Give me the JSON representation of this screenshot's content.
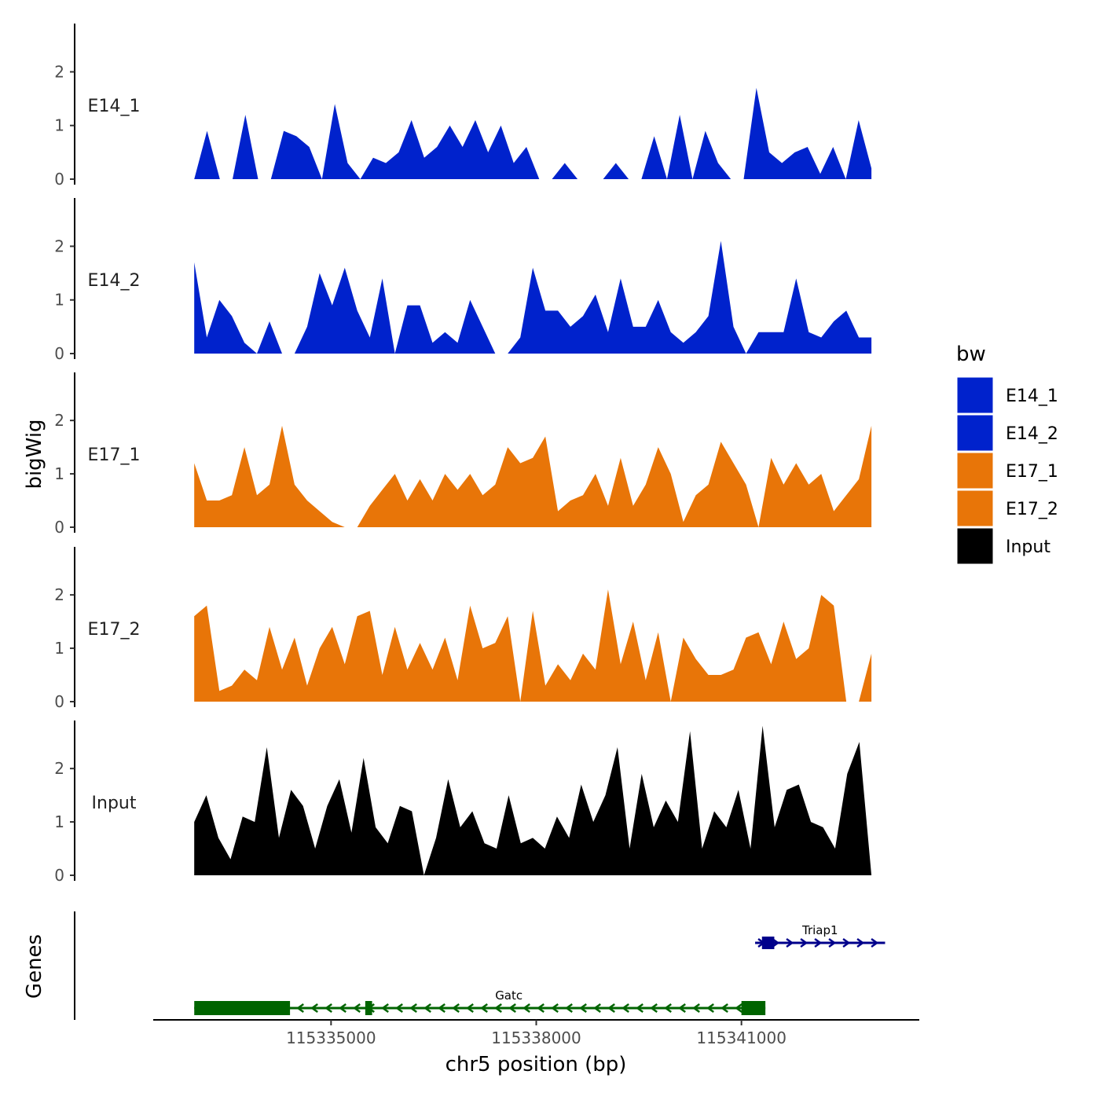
{
  "chart_data": {
    "type": "area",
    "title": "",
    "xlabel": "chr5 position (bp)",
    "ylabel": "bigWig",
    "genes_label": "Genes",
    "xlim": [
      115332400,
      115343600
    ],
    "ylim": [
      0,
      2.9
    ],
    "x_ticks": [
      115335000,
      115338000,
      115341000
    ],
    "x_tick_labels": [
      "115335000",
      "115338000",
      "115341000"
    ],
    "y_ticks": [
      0,
      1,
      2
    ],
    "y_tick_labels": [
      "0",
      "1",
      "2"
    ],
    "legend": {
      "title": "bw",
      "position": "right",
      "items": [
        {
          "label": "E14_1",
          "color": "#0022cc"
        },
        {
          "label": "E14_2",
          "color": "#0022cc"
        },
        {
          "label": "E17_1",
          "color": "#e87508"
        },
        {
          "label": "E17_2",
          "color": "#e87508"
        },
        {
          "label": "Input",
          "color": "#000000"
        }
      ]
    },
    "x_start": 115333000,
    "x_end": 115342900,
    "series": [
      {
        "name": "E14_1",
        "color": "#0022cc",
        "values": [
          0,
          0.9,
          0,
          0,
          1.2,
          0,
          0,
          0.9,
          0.8,
          0.6,
          0,
          1.4,
          0.3,
          0,
          0.4,
          0.3,
          0.5,
          1.1,
          0.4,
          0.6,
          1,
          0.6,
          1.1,
          0.5,
          1,
          0.3,
          0.6,
          0,
          0,
          0.3,
          0,
          0,
          0,
          0.3,
          0,
          0,
          0.8,
          0,
          1.2,
          0,
          0.9,
          0.3,
          0,
          0,
          1.7,
          0.5,
          0.3,
          0.5,
          0.6,
          0.1,
          0.6,
          0,
          1.1,
          0.2
        ]
      },
      {
        "name": "E14_2",
        "color": "#0022cc",
        "values": [
          1.7,
          0.3,
          1,
          0.7,
          0.2,
          0,
          0.6,
          0,
          0,
          0.5,
          1.5,
          0.9,
          1.6,
          0.8,
          0.3,
          1.4,
          0,
          0.9,
          0.9,
          0.2,
          0.4,
          0.2,
          1,
          0.5,
          0,
          0,
          0.3,
          1.6,
          0.8,
          0.8,
          0.5,
          0.7,
          1.1,
          0.4,
          1.4,
          0.5,
          0.5,
          1,
          0.4,
          0.2,
          0.4,
          0.7,
          2.1,
          0.5,
          0,
          0.4,
          0.4,
          0.4,
          1.4,
          0.4,
          0.3,
          0.6,
          0.8,
          0.3,
          0.3
        ]
      },
      {
        "name": "E17_1",
        "color": "#e87508",
        "values": [
          1.2,
          0.5,
          0.5,
          0.6,
          1.5,
          0.6,
          0.8,
          1.9,
          0.8,
          0.5,
          0.3,
          0.1,
          0,
          0,
          0.4,
          0.7,
          1,
          0.5,
          0.9,
          0.5,
          1,
          0.7,
          1,
          0.6,
          0.8,
          1.5,
          1.2,
          1.3,
          1.7,
          0.3,
          0.5,
          0.6,
          1,
          0.4,
          1.3,
          0.4,
          0.8,
          1.5,
          1,
          0.1,
          0.6,
          0.8,
          1.6,
          1.2,
          0.8,
          0,
          1.3,
          0.8,
          1.2,
          0.8,
          1,
          0.3,
          0.6,
          0.9,
          1.9
        ]
      },
      {
        "name": "E17_2",
        "color": "#e87508",
        "values": [
          1.6,
          1.8,
          0.2,
          0.3,
          0.6,
          0.4,
          1.4,
          0.6,
          1.2,
          0.3,
          1,
          1.4,
          0.7,
          1.6,
          1.7,
          0.5,
          1.4,
          0.6,
          1.1,
          0.6,
          1.2,
          0.4,
          1.8,
          1,
          1.1,
          1.6,
          0,
          1.7,
          0.3,
          0.7,
          0.4,
          0.9,
          0.6,
          2.1,
          0.7,
          1.5,
          0.4,
          1.3,
          0,
          1.2,
          0.8,
          0.5,
          0.5,
          0.6,
          1.2,
          1.3,
          0.7,
          1.5,
          0.8,
          1,
          2,
          1.8,
          0,
          0,
          0.9
        ]
      },
      {
        "name": "Input",
        "color": "#000000",
        "values": [
          1,
          1.5,
          0.7,
          0.3,
          1.1,
          1,
          2.4,
          0.7,
          1.6,
          1.3,
          0.5,
          1.3,
          1.8,
          0.8,
          2.2,
          0.9,
          0.6,
          1.3,
          1.2,
          0,
          0.7,
          1.8,
          0.9,
          1.2,
          0.6,
          0.5,
          1.5,
          0.6,
          0.7,
          0.5,
          1.1,
          0.7,
          1.7,
          1,
          1.5,
          2.4,
          0.5,
          1.9,
          0.9,
          1.4,
          1,
          2.7,
          0.5,
          1.2,
          0.9,
          1.6,
          0.5,
          2.8,
          0.9,
          1.6,
          1.7,
          1,
          0.9,
          0.5,
          1.9,
          2.5,
          0
        ]
      }
    ],
    "genes": [
      {
        "name": "Gatc",
        "strand": "-",
        "color": "#006400",
        "start": 115333000,
        "end": 115341350,
        "exons": [
          [
            115333000,
            115334400
          ],
          [
            115335500,
            115335600
          ],
          [
            115341000,
            115341350
          ]
        ]
      },
      {
        "name": "Triap1",
        "strand": "+",
        "color": "#00008b",
        "start": 115341200,
        "end": 115343100,
        "exons": [
          [
            115341300,
            115341480
          ]
        ]
      }
    ]
  }
}
